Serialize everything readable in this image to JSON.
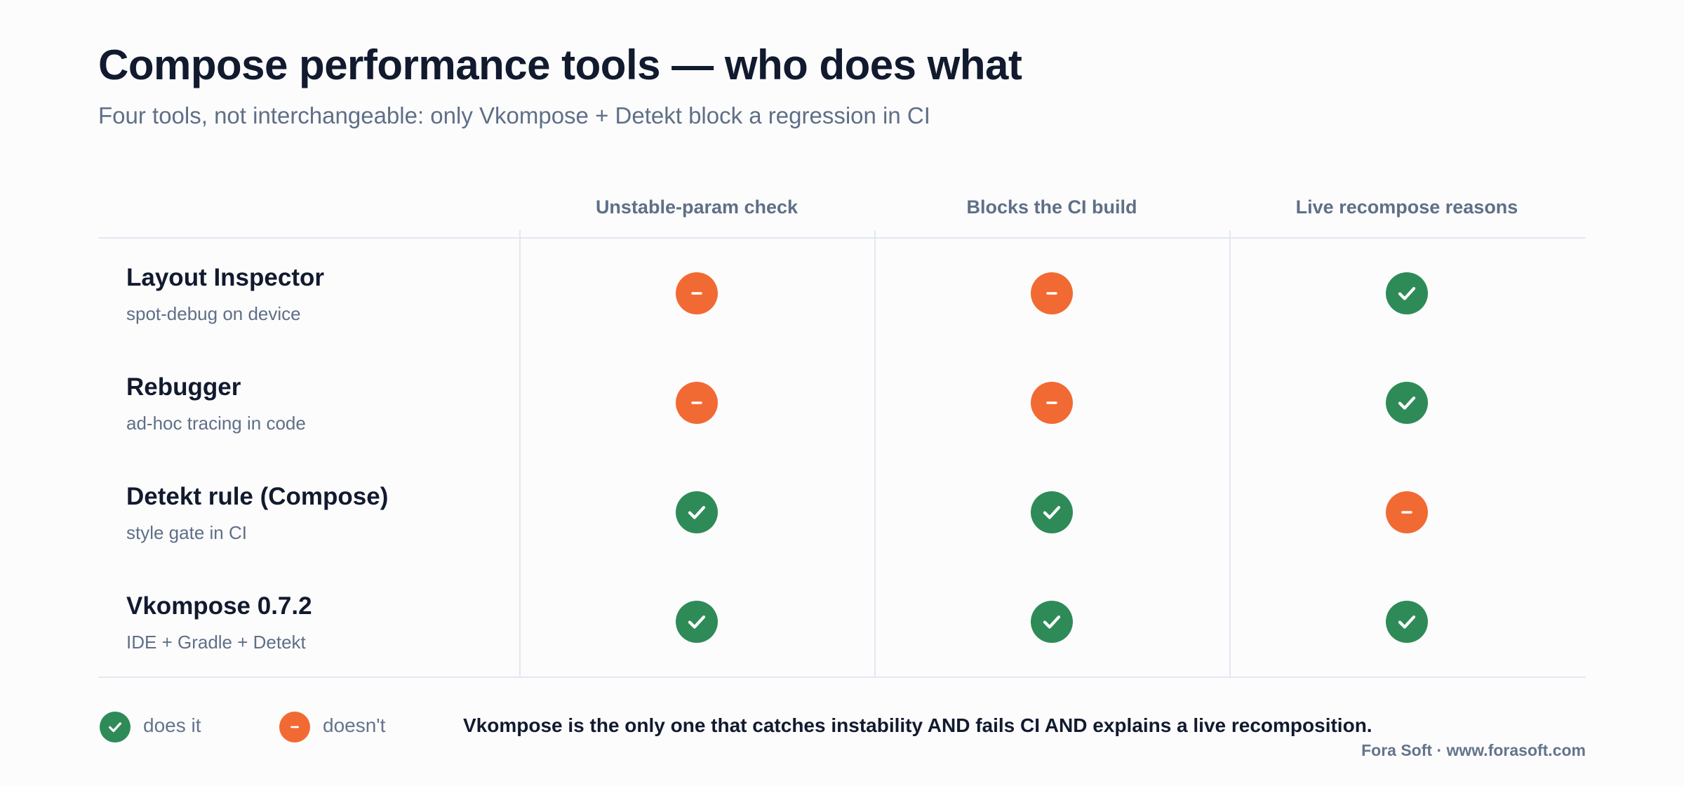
{
  "title": "Compose performance tools — who does what",
  "subtitle": "Four tools, not interchangeable: only Vkompose + Detekt block a regression in CI",
  "columns": [
    "Unstable-param check",
    "Blocks the CI build",
    "Live recompose reasons"
  ],
  "rows": [
    {
      "name": "Layout Inspector",
      "desc": "spot-debug on device",
      "marks": [
        "no",
        "no",
        "yes"
      ]
    },
    {
      "name": "Rebugger",
      "desc": "ad-hoc tracing in code",
      "marks": [
        "no",
        "no",
        "yes"
      ]
    },
    {
      "name": "Detekt rule (Compose)",
      "desc": "style gate in CI",
      "marks": [
        "yes",
        "yes",
        "no"
      ]
    },
    {
      "name": "Vkompose 0.7.2",
      "desc": "IDE + Gradle + Detekt",
      "marks": [
        "yes",
        "yes",
        "yes"
      ]
    }
  ],
  "legend": {
    "yes_label": "does it",
    "no_label": "doesn't",
    "yes_icon": "check-icon",
    "no_icon": "minus-icon"
  },
  "footnote": "Vkompose is the only one that catches instability AND fails CI AND explains a live recomposition.",
  "credit": "Fora Soft · www.forasoft.com",
  "colors": {
    "yes": "#2e8b57",
    "no": "#f26a33",
    "title": "#111a2e",
    "muted": "#5f6f86",
    "grid": "#e2e8f0"
  }
}
